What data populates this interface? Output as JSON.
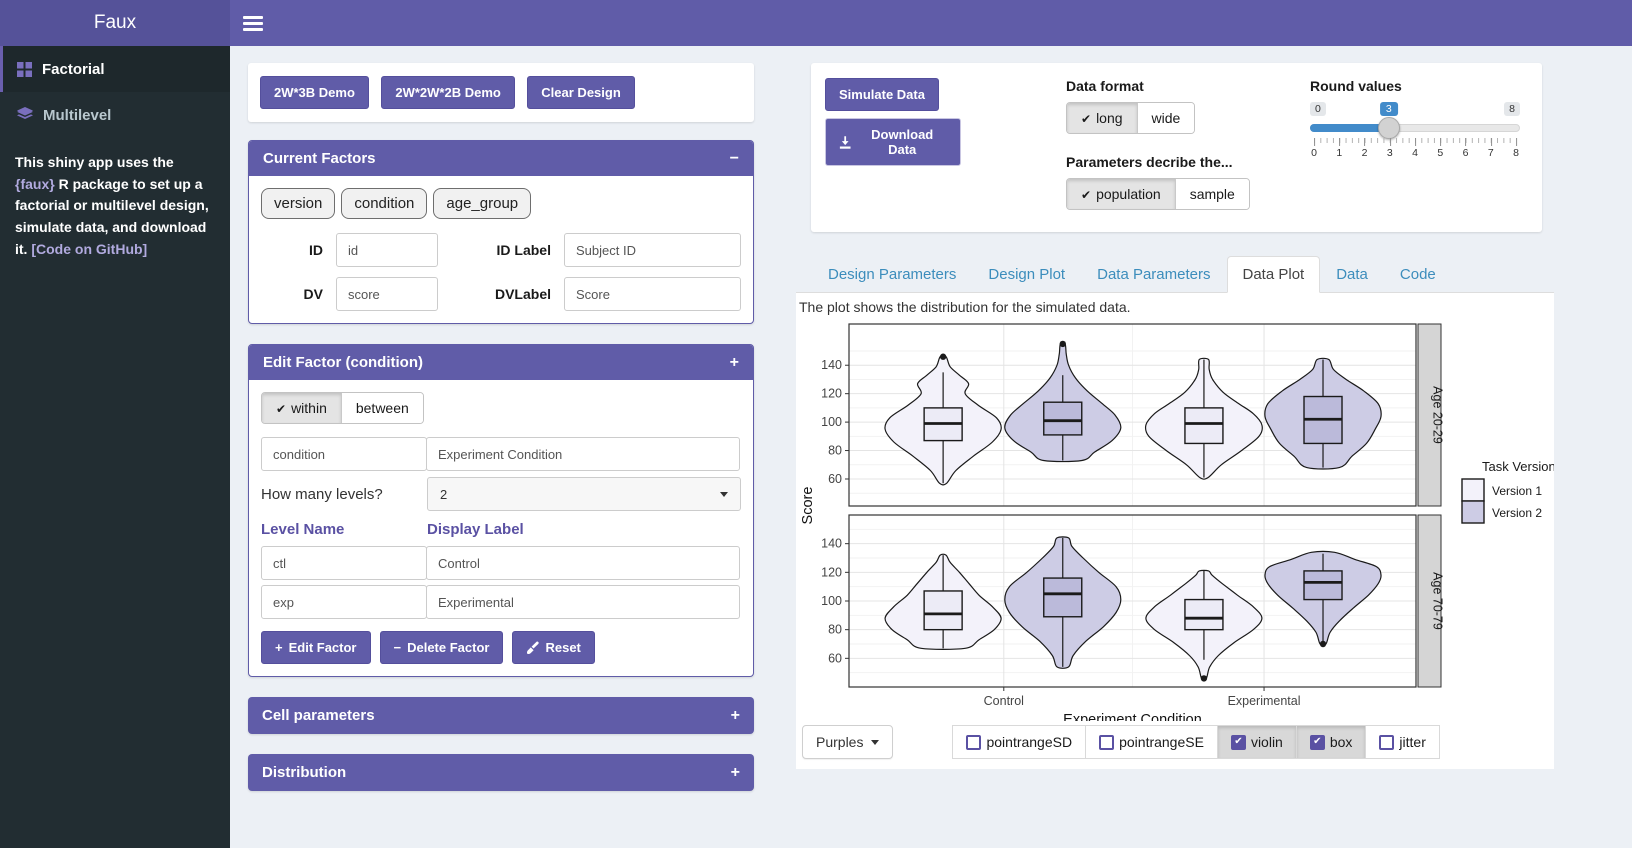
{
  "header": {
    "title": "Faux"
  },
  "sidebar": {
    "items": [
      {
        "label": "Factorial"
      },
      {
        "label": "Multilevel"
      }
    ],
    "about": {
      "t1": "This shiny app uses the ",
      "l1": "{faux}",
      "t2": " R package to set up a factorial or multilevel design, simulate data, and download it. ",
      "l2": "[Code on GitHub]"
    }
  },
  "design": {
    "demo_buttons": [
      "2W*3B Demo",
      "2W*2W*2B Demo",
      "Clear Design"
    ],
    "current_factors": {
      "title": "Current Factors",
      "collapse_icon": "−",
      "chips": [
        "version",
        "condition",
        "age_group"
      ],
      "id_label": "ID",
      "id_value": "id",
      "idlab_label": "ID Label",
      "idlab_value": "Subject ID",
      "dv_label": "DV",
      "dv_value": "score",
      "dvlab_label": "DVLabel",
      "dvlab_value": "Score"
    },
    "edit_factor": {
      "title": "Edit Factor (condition)",
      "collapse_icon": "+",
      "within_label": "within",
      "between_label": "between",
      "name_value": "condition",
      "display_value": "Experiment Condition",
      "levels_label": "How many levels?",
      "levels_value": "2",
      "level_name_header": "Level Name",
      "display_label_header": "Display Label",
      "levels": [
        {
          "name": "ctl",
          "label": "Control"
        },
        {
          "name": "exp",
          "label": "Experimental"
        }
      ],
      "edit_button": "Edit Factor",
      "delete_button": "Delete Factor",
      "reset_button": "Reset"
    },
    "cell_parameters_title": "Cell parameters",
    "distribution_title": "Distribution",
    "collapsed_icon": "+"
  },
  "simulate": {
    "simulate_button": "Simulate Data",
    "download_button": "Download Data",
    "data_format": {
      "label": "Data format",
      "options": [
        "long",
        "wide"
      ],
      "selected": "long"
    },
    "describe": {
      "label": "Parameters decribe the...",
      "options": [
        "population",
        "sample"
      ],
      "selected": "population"
    },
    "round": {
      "label": "Round values",
      "min": "0",
      "max": "8",
      "value": "3",
      "tick_labels": [
        "0",
        "1",
        "2",
        "3",
        "4",
        "5",
        "6",
        "7",
        "8"
      ]
    }
  },
  "tabs": {
    "items": [
      "Design Parameters",
      "Design Plot",
      "Data Parameters",
      "Data Plot",
      "Data",
      "Code"
    ],
    "active": "Data Plot"
  },
  "plot": {
    "caption": "The plot shows the distribution for the simulated data."
  },
  "chart_data": {
    "type": "violin",
    "xlabel": "Experiment Condition",
    "ylabel": "Score",
    "x_categories": [
      "Control",
      "Experimental"
    ],
    "x_positions": [
      0.273,
      0.732
    ],
    "yticks": [
      60,
      80,
      100,
      120,
      140
    ],
    "grid": true,
    "legend": {
      "title": "Task Version",
      "position": "right",
      "entries": [
        {
          "label": "Version 1",
          "fill": "#F3F2FA"
        },
        {
          "label": "Version 2",
          "fill": "#CDCCE5"
        }
      ]
    },
    "facets": [
      {
        "label": "Age 20-29",
        "ylim": [
          41,
          169
        ],
        "violins": [
          {
            "condition": "Control",
            "version": "Version 1",
            "xf": 0.166,
            "fill": "#F3F2FA",
            "box_fill": "#ECEBF6",
            "density": [
              [
                57,
                0.06
              ],
              [
                66,
                0.22
              ],
              [
                76,
                0.52
              ],
              [
                86,
                0.85
              ],
              [
                95,
                1.0
              ],
              [
                103,
                0.92
              ],
              [
                112,
                0.6
              ],
              [
                120,
                0.38
              ],
              [
                127,
                0.44
              ],
              [
                133,
                0.28
              ],
              [
                139,
                0.12
              ],
              [
                146,
                0.05
              ]
            ],
            "box": {
              "q1": 87,
              "median": 99,
              "q3": 110
            },
            "whiskers": [
              57,
              135
            ],
            "outliers": [
              146
            ]
          },
          {
            "condition": "Control",
            "version": "Version 2",
            "xf": 0.377,
            "fill": "#CDCCE5",
            "box_fill": "#BBBADA",
            "density": [
              [
                73,
                0.33
              ],
              [
                79,
                0.55
              ],
              [
                87,
                0.85
              ],
              [
                96,
                1.0
              ],
              [
                105,
                0.9
              ],
              [
                113,
                0.68
              ],
              [
                122,
                0.42
              ],
              [
                131,
                0.22
              ],
              [
                140,
                0.1
              ],
              [
                148,
                0.06
              ],
              [
                155,
                0.04
              ]
            ],
            "box": {
              "q1": 91,
              "median": 101,
              "q3": 114
            },
            "whiskers": [
              73,
              133
            ],
            "outliers": [
              155
            ]
          },
          {
            "condition": "Experimental",
            "version": "Version 1",
            "xf": 0.626,
            "fill": "#F3F2FA",
            "box_fill": "#ECEBF6",
            "density": [
              [
                61,
                0.07
              ],
              [
                70,
                0.3
              ],
              [
                80,
                0.65
              ],
              [
                90,
                0.95
              ],
              [
                98,
                1.0
              ],
              [
                106,
                0.85
              ],
              [
                113,
                0.6
              ],
              [
                121,
                0.33
              ],
              [
                130,
                0.15
              ],
              [
                137,
                0.09
              ],
              [
                144,
                0.08
              ]
            ],
            "box": {
              "q1": 85,
              "median": 99,
              "q3": 110
            },
            "whiskers": [
              61,
              144
            ],
            "outliers": []
          },
          {
            "condition": "Experimental",
            "version": "Version 2",
            "xf": 0.836,
            "fill": "#CDCCE5",
            "box_fill": "#BBBADA",
            "density": [
              [
                68,
                0.28
              ],
              [
                76,
                0.5
              ],
              [
                85,
                0.75
              ],
              [
                95,
                0.9
              ],
              [
                104,
                1.0
              ],
              [
                113,
                0.95
              ],
              [
                122,
                0.7
              ],
              [
                130,
                0.4
              ],
              [
                137,
                0.18
              ],
              [
                144,
                0.1
              ]
            ],
            "box": {
              "q1": 85,
              "median": 102,
              "q3": 118
            },
            "whiskers": [
              68,
              144
            ],
            "outliers": []
          }
        ]
      },
      {
        "label": "Age 70-79",
        "ylim": [
          40,
          160
        ],
        "violins": [
          {
            "condition": "Control",
            "version": "Version 1",
            "xf": 0.166,
            "fill": "#F3F2FA",
            "box_fill": "#ECEBF6",
            "density": [
              [
                67,
                0.38
              ],
              [
                73,
                0.62
              ],
              [
                80,
                0.88
              ],
              [
                88,
                1.0
              ],
              [
                96,
                0.85
              ],
              [
                104,
                0.62
              ],
              [
                112,
                0.45
              ],
              [
                120,
                0.28
              ],
              [
                127,
                0.12
              ],
              [
                132,
                0.05
              ]
            ],
            "box": {
              "q1": 80,
              "median": 91,
              "q3": 107
            },
            "whiskers": [
              67,
              132
            ],
            "outliers": []
          },
          {
            "condition": "Control",
            "version": "Version 2",
            "xf": 0.377,
            "fill": "#CDCCE5",
            "box_fill": "#BBBADA",
            "density": [
              [
                54,
                0.1
              ],
              [
                62,
                0.18
              ],
              [
                72,
                0.4
              ],
              [
                82,
                0.7
              ],
              [
                92,
                0.92
              ],
              [
                101,
                1.0
              ],
              [
                110,
                0.92
              ],
              [
                120,
                0.62
              ],
              [
                130,
                0.35
              ],
              [
                138,
                0.16
              ],
              [
                144,
                0.1
              ]
            ],
            "box": {
              "q1": 89,
              "median": 105,
              "q3": 116
            },
            "whiskers": [
              54,
              144
            ],
            "outliers": []
          },
          {
            "condition": "Experimental",
            "version": "Version 1",
            "xf": 0.626,
            "fill": "#F3F2FA",
            "box_fill": "#ECEBF6",
            "density": [
              [
                46,
                0.04
              ],
              [
                54,
                0.1
              ],
              [
                62,
                0.25
              ],
              [
                71,
                0.52
              ],
              [
                80,
                0.85
              ],
              [
                88,
                1.0
              ],
              [
                96,
                0.85
              ],
              [
                104,
                0.58
              ],
              [
                112,
                0.32
              ],
              [
                118,
                0.14
              ],
              [
                121,
                0.08
              ]
            ],
            "box": {
              "q1": 80,
              "median": 88,
              "q3": 101
            },
            "whiskers": [
              59,
              121
            ],
            "outliers": [
              46
            ]
          },
          {
            "condition": "Experimental",
            "version": "Version 2",
            "xf": 0.836,
            "fill": "#CDCCE5",
            "box_fill": "#BBBADA",
            "density": [
              [
                70,
                0.05
              ],
              [
                78,
                0.12
              ],
              [
                86,
                0.28
              ],
              [
                95,
                0.52
              ],
              [
                104,
                0.78
              ],
              [
                112,
                0.95
              ],
              [
                118,
                1.0
              ],
              [
                124,
                0.92
              ],
              [
                129,
                0.55
              ],
              [
                134,
                0.2
              ]
            ],
            "box": {
              "q1": 101,
              "median": 113,
              "q3": 121
            },
            "whiskers": [
              72,
              133
            ],
            "outliers": [
              70
            ]
          }
        ]
      }
    ]
  },
  "plot_controls": {
    "palette": {
      "label": "Purples"
    },
    "options": [
      {
        "label": "pointrangeSD",
        "checked": false
      },
      {
        "label": "pointrangeSE",
        "checked": false
      },
      {
        "label": "violin",
        "checked": true
      },
      {
        "label": "box",
        "checked": true
      },
      {
        "label": "jitter",
        "checked": false
      }
    ]
  },
  "colors": {
    "primary": "#605ca8",
    "logo_bg": "#555299",
    "sidebar_bg": "#222d32",
    "tab_link": "#3c8dbc",
    "slider_blue": "#428bca",
    "checkbox_purple": "#5a51a3",
    "violin_version1": "#F3F2FA",
    "violin_version2": "#CDCCE5"
  }
}
